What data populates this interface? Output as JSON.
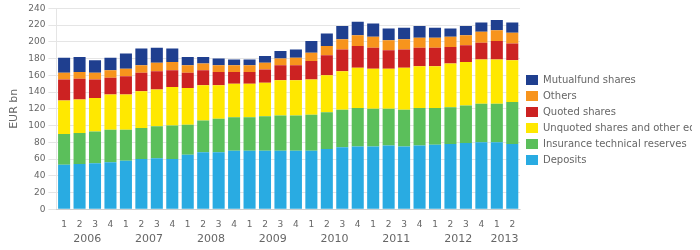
{
  "chart_data": {
    "type": "bar",
    "stacked": true,
    "categories": [
      "1",
      "2",
      "3",
      "4",
      "1",
      "2",
      "3",
      "4",
      "1",
      "2",
      "3",
      "4",
      "1",
      "2",
      "3",
      "4",
      "1",
      "2",
      "3",
      "4",
      "1",
      "2",
      "3",
      "4",
      "1",
      "2",
      "3",
      "4",
      "1",
      "2"
    ],
    "annotations": [
      "2006",
      "2007",
      "2008",
      "2009",
      "2010",
      "2011",
      "2012",
      "2013"
    ],
    "y_label": "EUR bn",
    "series": [
      {
        "name": "Deposits",
        "color": "#29ABE2",
        "values": [
          53,
          54,
          55,
          56,
          58,
          60,
          61,
          60,
          65,
          68,
          68,
          70,
          70,
          70,
          70,
          70,
          70,
          72,
          74,
          75,
          75,
          76,
          75,
          76,
          77,
          78,
          79,
          80,
          80,
          78
        ]
      },
      {
        "name": "Insurance technical reserves",
        "color": "#5BBF5B",
        "values": [
          37,
          37,
          38,
          39,
          37,
          37,
          38,
          40,
          36,
          38,
          40,
          40,
          40,
          41,
          42,
          42,
          43,
          44,
          45,
          46,
          45,
          44,
          44,
          45,
          44,
          44,
          45,
          46,
          46,
          50
        ]
      },
      {
        "name": "Unquoted shares and other equity",
        "color": "#FFE800",
        "values": [
          40,
          40,
          40,
          42,
          42,
          44,
          44,
          46,
          44,
          42,
          40,
          40,
          40,
          40,
          42,
          42,
          42,
          44,
          46,
          48,
          48,
          48,
          50,
          50,
          50,
          52,
          52,
          53,
          53,
          50
        ]
      },
      {
        "name": "Quoted shares",
        "color": "#CC2222",
        "values": [
          25,
          25,
          22,
          20,
          22,
          22,
          22,
          20,
          18,
          18,
          16,
          14,
          14,
          16,
          18,
          18,
          22,
          24,
          26,
          26,
          25,
          22,
          22,
          22,
          22,
          20,
          20,
          20,
          22,
          20
        ]
      },
      {
        "name": "Others",
        "color": "#F7941D",
        "values": [
          8,
          8,
          8,
          9,
          9,
          9,
          10,
          10,
          9,
          8,
          8,
          8,
          8,
          8,
          8,
          9,
          10,
          11,
          12,
          13,
          13,
          12,
          12,
          12,
          12,
          12,
          12,
          13,
          13,
          13
        ]
      },
      {
        "name": "Mutualfund shares",
        "color": "#1F3F8F",
        "values": [
          18,
          18,
          15,
          15,
          18,
          20,
          18,
          16,
          10,
          8,
          8,
          7,
          7,
          8,
          9,
          10,
          14,
          15,
          16,
          16,
          16,
          14,
          14,
          14,
          12,
          10,
          11,
          11,
          12,
          12
        ]
      }
    ],
    "ylim": [
      0,
      240
    ],
    "yticks": [
      0,
      20,
      40,
      60,
      80,
      100,
      120,
      140,
      160,
      180,
      200,
      220,
      240
    ],
    "grid": true,
    "legend": "right"
  }
}
